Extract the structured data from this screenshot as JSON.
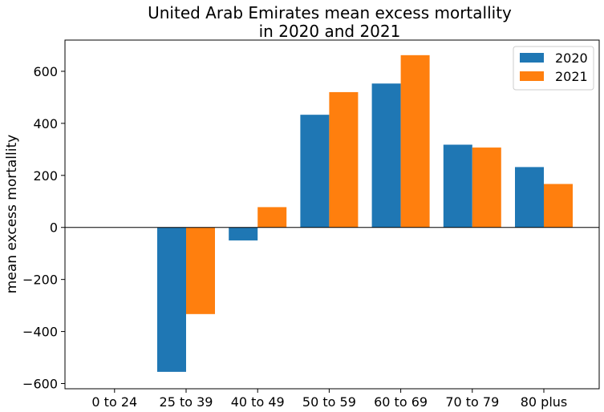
{
  "chart_data": {
    "type": "bar",
    "title_line1": "United Arab Emirates mean excess mortallity",
    "title_line2": "in 2020 and 2021",
    "xlabel": "",
    "ylabel": "mean excess mortallity",
    "categories": [
      "0 to 24",
      "25 to 39",
      "40 to 49",
      "50 to 59",
      "60 to 69",
      "70 to 79",
      "80 plus"
    ],
    "series": [
      {
        "name": "2020",
        "color": "#1f77b4",
        "values": [
          0,
          -555,
          -50,
          433,
          553,
          318,
          232
        ]
      },
      {
        "name": "2021",
        "color": "#ff7f0e",
        "values": [
          0,
          -333,
          78,
          520,
          662,
          307,
          167
        ]
      }
    ],
    "ylim": [
      -620,
      720
    ],
    "yticks": [
      -600,
      -400,
      -200,
      0,
      200,
      400,
      600
    ],
    "grid": false,
    "zero_line": true,
    "legend_position": "top-right"
  }
}
